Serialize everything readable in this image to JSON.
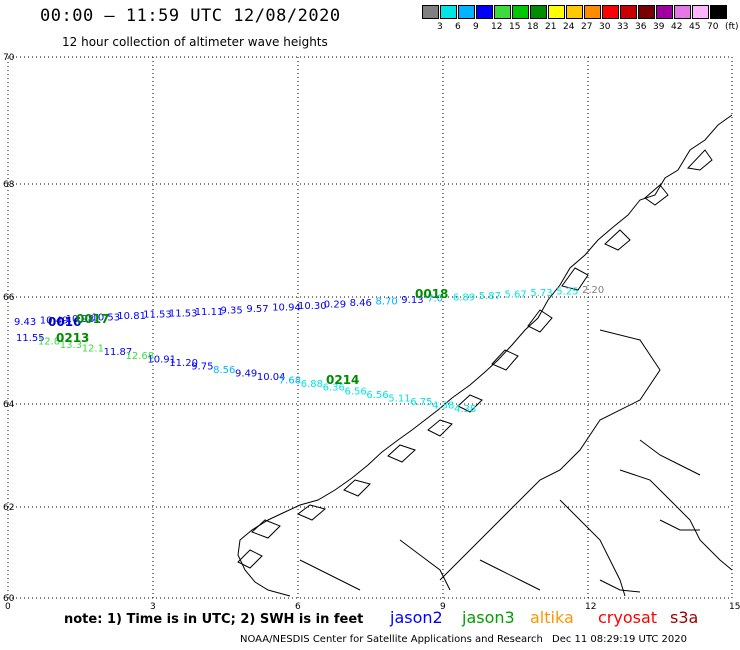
{
  "header": {
    "title": "00:00 – 11:59 UTC 12/08/2020",
    "subtitle": "12 hour collection of altimeter wave heights"
  },
  "scale": {
    "unit": "(ft)",
    "colors": [
      "#808080",
      "#00e6e6",
      "#00b4ff",
      "#0000ff",
      "#3cdc3c",
      "#00c800",
      "#008c00",
      "#ffff00",
      "#ffc800",
      "#ff8c00",
      "#ff0000",
      "#c80000",
      "#780000",
      "#a000a0",
      "#e678e6",
      "#ffb4ff",
      "#000000"
    ],
    "labels": [
      "3",
      "6",
      "9",
      "12",
      "15",
      "18",
      "21",
      "24",
      "27",
      "30",
      "33",
      "36",
      "39",
      "42",
      "45",
      "70"
    ]
  },
  "axes": {
    "y_ticks": [
      "70",
      "68",
      "66",
      "64",
      "62",
      "60"
    ],
    "x_ticks": [
      "0",
      "3",
      "6",
      "9",
      "12",
      "15"
    ]
  },
  "passes": [
    {
      "id": "0018",
      "color": "#008c00"
    },
    {
      "id": "0016",
      "color": "#0000c8"
    },
    {
      "id": "0017",
      "color": "#008c00"
    },
    {
      "id": "0213",
      "color": "#008c00"
    },
    {
      "id": "0214",
      "color": "#008c00"
    }
  ],
  "swh_labels": {
    "upper_track": [
      {
        "text": "9.43",
        "color": "#0000ff"
      },
      {
        "text": "10.49",
        "color": "#0000ff"
      },
      {
        "text": "10.98",
        "color": "#0000ff"
      },
      {
        "text": "10.53",
        "color": "#0000ff"
      },
      {
        "text": "10.81",
        "color": "#0000ff"
      },
      {
        "text": "11.53",
        "color": "#0000ff"
      },
      {
        "text": "11.53",
        "color": "#0000ff"
      },
      {
        "text": "11.11",
        "color": "#0000ff"
      },
      {
        "text": "9.35",
        "color": "#0000ff"
      },
      {
        "text": "9.57",
        "color": "#0000ff"
      },
      {
        "text": "10.94",
        "color": "#0000ff"
      },
      {
        "text": "10.30",
        "color": "#0000ff"
      },
      {
        "text": "0.29",
        "color": "#0000ff"
      },
      {
        "text": "8.46",
        "color": "#0000ff"
      },
      {
        "text": "8.70",
        "color": "#00b4ff"
      },
      {
        "text": "9.13",
        "color": "#0000ff"
      },
      {
        "text": "7.0",
        "color": "#00b4ff"
      },
      {
        "text": "6.89",
        "color": "#00e6e6"
      },
      {
        "text": "5.87",
        "color": "#00e6e6"
      },
      {
        "text": "5.67",
        "color": "#00e6e6"
      },
      {
        "text": "5.73",
        "color": "#00e6e6"
      },
      {
        "text": "5.25",
        "color": "#00e6e6"
      },
      {
        "text": "2.20",
        "color": "#808080"
      }
    ],
    "lower_track": [
      {
        "text": "11.55",
        "color": "#0000ff"
      },
      {
        "text": "12.8",
        "color": "#3cdc3c"
      },
      {
        "text": "13.3",
        "color": "#3cdc3c"
      },
      {
        "text": "12.1",
        "color": "#3cdc3c"
      },
      {
        "text": "11.87",
        "color": "#0000ff"
      },
      {
        "text": "12.68",
        "color": "#3cdc3c"
      },
      {
        "text": "10.91",
        "color": "#0000ff"
      },
      {
        "text": "11.20",
        "color": "#0000ff"
      },
      {
        "text": "9.75",
        "color": "#0000ff"
      },
      {
        "text": "8.56",
        "color": "#00b4ff"
      },
      {
        "text": "9.49",
        "color": "#0000ff"
      },
      {
        "text": "10.04",
        "color": "#0000ff"
      },
      {
        "text": "7.68",
        "color": "#00b4ff"
      },
      {
        "text": "6.88",
        "color": "#00e6e6"
      },
      {
        "text": "6.36",
        "color": "#00e6e6"
      },
      {
        "text": "6.56",
        "color": "#00e6e6"
      },
      {
        "text": "6.56",
        "color": "#00e6e6"
      },
      {
        "text": "5.11",
        "color": "#00e6e6"
      },
      {
        "text": "6.75",
        "color": "#00e6e6"
      },
      {
        "text": "4.38",
        "color": "#00e6e6"
      },
      {
        "text": "4.38",
        "color": "#00e6e6"
      }
    ]
  },
  "footer": {
    "note": "note: 1) Time is in UTC; 2) SWH is in feet",
    "satellites": [
      {
        "name": "jason2",
        "color": "#0000ff"
      },
      {
        "name": "jason3",
        "color": "#00a000"
      },
      {
        "name": "altika",
        "color": "#ff9600"
      },
      {
        "name": "cryosat",
        "color": "#ff0000"
      },
      {
        "name": "s3a",
        "color": "#a00000"
      }
    ],
    "credit": "NOAA/NESDIS Center for Satellite Applications and Research",
    "timestamp": "Dec 11 08:29:19 UTC 2020"
  }
}
